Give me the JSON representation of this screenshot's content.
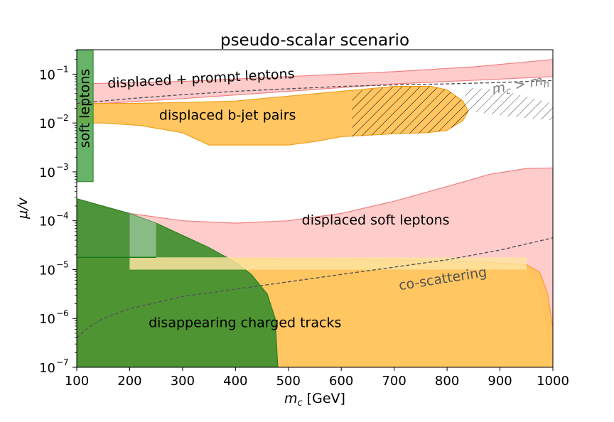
{
  "chart_data": {
    "type": "area",
    "title": "pseudo-scalar scenario",
    "xlabel": "m_c [GeV]",
    "xlabel_parts": {
      "m": "m",
      "sub": "c",
      "unit": " [GeV]"
    },
    "ylabel": "μ/v",
    "xlim": [
      100,
      1000
    ],
    "ylim_exponent": [
      -7,
      -0.5
    ],
    "yscale": "log",
    "x_ticks": [
      100,
      200,
      300,
      400,
      500,
      600,
      700,
      800,
      900,
      1000
    ],
    "x_tick_labels": [
      "100",
      "200",
      "300",
      "400",
      "500",
      "600",
      "700",
      "800",
      "900",
      "1000"
    ],
    "y_ticks": [
      {
        "exp": -7,
        "base": "10",
        "sup": "−7"
      },
      {
        "exp": -6,
        "base": "10",
        "sup": "−6"
      },
      {
        "exp": -5,
        "base": "10",
        "sup": "−5"
      },
      {
        "exp": -4,
        "base": "10",
        "sup": "−4"
      },
      {
        "exp": -3,
        "base": "10",
        "sup": "−3"
      },
      {
        "exp": -2,
        "base": "10",
        "sup": "−2"
      },
      {
        "exp": -1,
        "base": "10",
        "sup": "−1"
      }
    ],
    "regions": [
      {
        "name": "displaced-soft-leptons-region",
        "fill": "#ffcccc",
        "stroke": "#f08080",
        "opacity": 1,
        "points": [
          [
            100,
            -3.6
          ],
          [
            200,
            -3.85
          ],
          [
            300,
            -4.0
          ],
          [
            400,
            -4.05
          ],
          [
            500,
            -4.0
          ],
          [
            600,
            -3.85
          ],
          [
            700,
            -3.6
          ],
          [
            800,
            -3.3
          ],
          [
            880,
            -3.05
          ],
          [
            950,
            -2.93
          ],
          [
            1000,
            -2.92
          ],
          [
            1000,
            -6.98
          ],
          [
            990,
            -6.3
          ],
          [
            980,
            -5.6
          ],
          [
            960,
            -5.05
          ],
          [
            940,
            -4.9
          ],
          [
            880,
            -4.9
          ],
          [
            700,
            -4.87
          ],
          [
            400,
            -4.77
          ],
          [
            100,
            -4.75
          ]
        ]
      },
      {
        "name": "displaced-prompt-leptons-region",
        "fill": "#ffcccc",
        "stroke": "#f08080",
        "opacity": 1,
        "points": [
          [
            100,
            -1.2
          ],
          [
            300,
            -1.15
          ],
          [
            500,
            -1.05
          ],
          [
            700,
            -0.95
          ],
          [
            850,
            -0.85
          ],
          [
            950,
            -0.75
          ],
          [
            1000,
            -0.7
          ],
          [
            1000,
            -1.05
          ],
          [
            900,
            -1.1
          ],
          [
            700,
            -1.2
          ],
          [
            500,
            -1.35
          ],
          [
            300,
            -1.5
          ],
          [
            150,
            -1.6
          ],
          [
            100,
            -1.65
          ]
        ]
      },
      {
        "name": "displaced-bjet-region",
        "fill": "#ffc35a",
        "stroke": "#f0a020",
        "opacity": 0.95,
        "points": [
          [
            100,
            -1.6
          ],
          [
            200,
            -1.6
          ],
          [
            300,
            -1.58
          ],
          [
            400,
            -1.55
          ],
          [
            500,
            -1.45
          ],
          [
            600,
            -1.35
          ],
          [
            700,
            -1.25
          ],
          [
            770,
            -1.25
          ],
          [
            800,
            -1.32
          ],
          [
            830,
            -1.55
          ],
          [
            840,
            -1.75
          ],
          [
            830,
            -1.95
          ],
          [
            800,
            -2.15
          ],
          [
            760,
            -2.2
          ],
          [
            700,
            -2.22
          ],
          [
            600,
            -2.28
          ],
          [
            550,
            -2.38
          ],
          [
            500,
            -2.45
          ],
          [
            450,
            -2.45
          ],
          [
            400,
            -2.45
          ],
          [
            350,
            -2.45
          ],
          [
            300,
            -2.2
          ],
          [
            220,
            -2.05
          ],
          [
            150,
            -2.0
          ],
          [
            100,
            -2.0
          ]
        ]
      },
      {
        "name": "disappearing-tracks-orange-region",
        "fill": "#ffc35a",
        "stroke": "#ff9933",
        "opacity": 0.95,
        "points": [
          [
            100,
            -4.75
          ],
          [
            400,
            -4.77
          ],
          [
            700,
            -4.8
          ],
          [
            880,
            -4.85
          ],
          [
            950,
            -4.9
          ],
          [
            975,
            -5.05
          ],
          [
            990,
            -5.5
          ],
          [
            1000,
            -6.2
          ],
          [
            1000,
            -7
          ],
          [
            100,
            -7
          ]
        ]
      },
      {
        "name": "disappearing-tracks-green-region",
        "fill": "#3f8f2f",
        "stroke": "#2f7f1f",
        "opacity": 0.92,
        "points": [
          [
            100,
            -3.55
          ],
          [
            150,
            -3.7
          ],
          [
            200,
            -3.85
          ],
          [
            250,
            -4.05
          ],
          [
            300,
            -4.3
          ],
          [
            350,
            -4.55
          ],
          [
            400,
            -4.85
          ],
          [
            430,
            -5.1
          ],
          [
            460,
            -5.5
          ],
          [
            475,
            -6.0
          ],
          [
            480,
            -7
          ],
          [
            100,
            -7
          ]
        ]
      },
      {
        "name": "light-green-constraint-region",
        "fill": "#9ec99e",
        "stroke": "#6aa06a",
        "opacity": 0.75,
        "points": [
          [
            200,
            -3.85
          ],
          [
            250,
            -4.05
          ],
          [
            250,
            -4.75
          ],
          [
            200,
            -4.75
          ]
        ]
      },
      {
        "name": "light-yellow-constraint-region",
        "fill": "#fde3a0",
        "stroke": "none",
        "opacity": 0.85,
        "points": [
          [
            200,
            -4.75
          ],
          [
            950,
            -4.75
          ],
          [
            950,
            -5.0
          ],
          [
            200,
            -5.0
          ]
        ]
      },
      {
        "name": "soft-leptons-region",
        "fill": "#4ca64c",
        "stroke": "#3a8a3a",
        "opacity": 0.85,
        "points": [
          [
            100,
            -0.5
          ],
          [
            131,
            -0.5
          ],
          [
            131,
            -3.2
          ],
          [
            100,
            -3.2
          ]
        ]
      }
    ],
    "hatch_regions": [
      {
        "name": "mc-gt-mh-hatch",
        "points": [
          [
            620,
            -1.35
          ],
          [
            700,
            -1.25
          ],
          [
            770,
            -1.25
          ],
          [
            800,
            -1.32
          ],
          [
            830,
            -1.55
          ],
          [
            840,
            -1.75
          ],
          [
            830,
            -1.95
          ],
          [
            800,
            -2.15
          ],
          [
            760,
            -2.2
          ],
          [
            700,
            -2.22
          ],
          [
            620,
            -2.28
          ]
        ]
      },
      {
        "name": "upper-right-hatch",
        "points": [
          [
            840,
            -1.28
          ],
          [
            900,
            -1.32
          ],
          [
            1000,
            -1.6
          ],
          [
            1000,
            -1.95
          ],
          [
            900,
            -1.85
          ],
          [
            840,
            -1.75
          ],
          [
            830,
            -1.55
          ]
        ]
      }
    ],
    "lines": [
      {
        "name": "co-scattering-curve",
        "stroke": "#555555",
        "points": [
          [
            100,
            -6.4
          ],
          [
            120,
            -6.2
          ],
          [
            150,
            -6.0
          ],
          [
            200,
            -5.8
          ],
          [
            300,
            -5.55
          ],
          [
            400,
            -5.4
          ],
          [
            500,
            -5.25
          ],
          [
            600,
            -5.1
          ],
          [
            700,
            -4.95
          ],
          [
            800,
            -4.8
          ],
          [
            900,
            -4.6
          ],
          [
            1000,
            -4.35
          ]
        ]
      },
      {
        "name": "mc-mh-boundary-curve",
        "stroke": "#555555",
        "points": [
          [
            100,
            -1.6
          ],
          [
            200,
            -1.5
          ],
          [
            300,
            -1.42
          ],
          [
            400,
            -1.35
          ],
          [
            500,
            -1.3
          ],
          [
            600,
            -1.25
          ],
          [
            700,
            -1.22
          ],
          [
            800,
            -1.2
          ],
          [
            900,
            -1.17
          ],
          [
            1000,
            -1.13
          ]
        ]
      }
    ],
    "hline": {
      "name": "green-boundary-line",
      "y_exp": -4.75,
      "x": [
        100,
        250
      ],
      "stroke": "#1a7a1a"
    },
    "labels": [
      {
        "name": "label-displaced-prompt-leptons",
        "text": "displaced + prompt leptons",
        "x": 335,
        "y_exp": -1.1,
        "rotate": -3,
        "color": "#000"
      },
      {
        "name": "label-displaced-bjet-pairs",
        "text": "displaced b-jet pairs",
        "x": 385,
        "y_exp": -1.85,
        "rotate": 0,
        "color": "#000"
      },
      {
        "name": "label-displaced-soft-leptons",
        "text": "displaced soft leptons",
        "x": 665,
        "y_exp": -4.0,
        "rotate": 0,
        "color": "#000"
      },
      {
        "name": "label-disappearing-charged-tracks",
        "text": "disappearing charged tracks",
        "x": 418,
        "y_exp": -6.1,
        "rotate": 0,
        "color": "#000"
      },
      {
        "name": "label-co-scattering",
        "text": "co-scattering",
        "x": 792,
        "y_exp": -5.2,
        "rotate": -9,
        "color": "#555555"
      }
    ],
    "mc_mh_label": {
      "m1": "m",
      "s1": "c",
      "op": " > ",
      "m2": "m",
      "s2": "h",
      "x": 940,
      "y_exp": -1.3,
      "rotate": -10,
      "color": "#808080"
    },
    "vertical_label": {
      "text": "soft leptons",
      "x": 116,
      "y_exp": -1.7
    }
  }
}
